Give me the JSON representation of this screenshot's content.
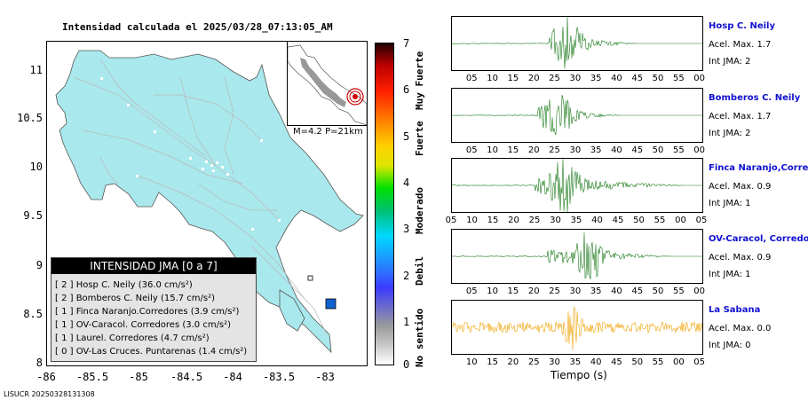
{
  "map": {
    "title": "Intensidad calculada el 2025/03/28_07:13:05_AM",
    "y_ticks": [
      "11",
      "10.5",
      "10",
      "9.5",
      "9",
      "8.5",
      "8"
    ],
    "x_ticks": [
      "-86",
      "-85.5",
      "-85",
      "-84.5",
      "-84",
      "-83.5",
      "-83"
    ],
    "land_color": "#a9e8ec",
    "marker_color": "#1060d0",
    "inset_label": "M=4.2 P=21km"
  },
  "legend": {
    "title": "INTENSIDAD JMA [0 a 7]",
    "rows": [
      {
        "text": "[ 2 ]  Hosp C. Neily (36.0 cm/s²)"
      },
      {
        "text": "[ 2 ]  Bomberos C. Neily (15.7 cm/s²)"
      },
      {
        "text": "[ 1 ]  Finca Naranjo.Corredores (3.9 cm/s²)"
      },
      {
        "text": "[ 1 ]  OV-Caracol. Corredores (3.0 cm/s²)"
      },
      {
        "text": "[ 1 ]  Laurel. Corredores (4.7 cm/s²)"
      },
      {
        "text": "[ 0 ]  OV-Las Cruces. Puntarenas (1.4 cm/s²)"
      }
    ]
  },
  "colorbar": {
    "ticks": [
      "7",
      "6",
      "5",
      "4",
      "3",
      "2",
      "1",
      "0"
    ],
    "classes": [
      "Muy Fuerte",
      "Fuerte",
      "Moderado",
      "Debil",
      "No sentido"
    ]
  },
  "traces": [
    {
      "name": "Hosp C. Neily",
      "acel": "Acel. Max. 1.7",
      "int": "Int JMA: 2",
      "color": "#1a7a1a",
      "ticks": [
        "05",
        "10",
        "15",
        "20",
        "25",
        "30",
        "35",
        "40",
        "45",
        "50",
        "55",
        "00"
      ],
      "onset": 0.39,
      "peak": 0.46,
      "amp": 1.0,
      "duration": 0.35
    },
    {
      "name": "Bomberos C. Neily",
      "acel": "Acel. Max. 1.7",
      "int": "Int JMA: 2",
      "color": "#1a7a1a",
      "ticks": [
        "05",
        "10",
        "15",
        "20",
        "25",
        "30",
        "35",
        "40",
        "45",
        "50",
        "55",
        "00"
      ],
      "onset": 0.34,
      "peak": 0.42,
      "amp": 0.9,
      "duration": 0.33
    },
    {
      "name": "Finca Naranjo,Corredores",
      "acel": "Acel. Max. 0.9",
      "int": "Int JMA: 1",
      "color": "#1a7a1a",
      "ticks": [
        "05",
        "10",
        "15",
        "20",
        "25",
        "30",
        "35",
        "40",
        "45",
        "50",
        "55",
        "00",
        "05"
      ],
      "onset": 0.33,
      "peak": 0.45,
      "amp": 0.95,
      "duration": 0.6
    },
    {
      "name": "OV-Caracol, Corredores",
      "acel": "Acel. Max. 0.9",
      "int": "Int JMA: 1",
      "color": "#1a7a1a",
      "ticks": [
        "05",
        "10",
        "15",
        "20",
        "25",
        "30",
        "35",
        "40",
        "45",
        "50",
        "55",
        "00"
      ],
      "onset": 0.38,
      "peak": 0.55,
      "amp": 0.9,
      "duration": 0.5
    },
    {
      "name": "La Sabana",
      "acel": "Acel. Max. 0.0",
      "int": "Int JMA: 0",
      "color": "#f0a000",
      "ticks": [
        "10",
        "15",
        "20",
        "25",
        "30",
        "35",
        "40",
        "45",
        "50",
        "55",
        "00",
        "05"
      ],
      "onset": 0.0,
      "peak": 0.48,
      "amp": 0.7,
      "duration": 1.0,
      "noise": true
    }
  ],
  "time_axis_label": "Tiempo (s)",
  "footer": "LISUCR 20250328131308"
}
